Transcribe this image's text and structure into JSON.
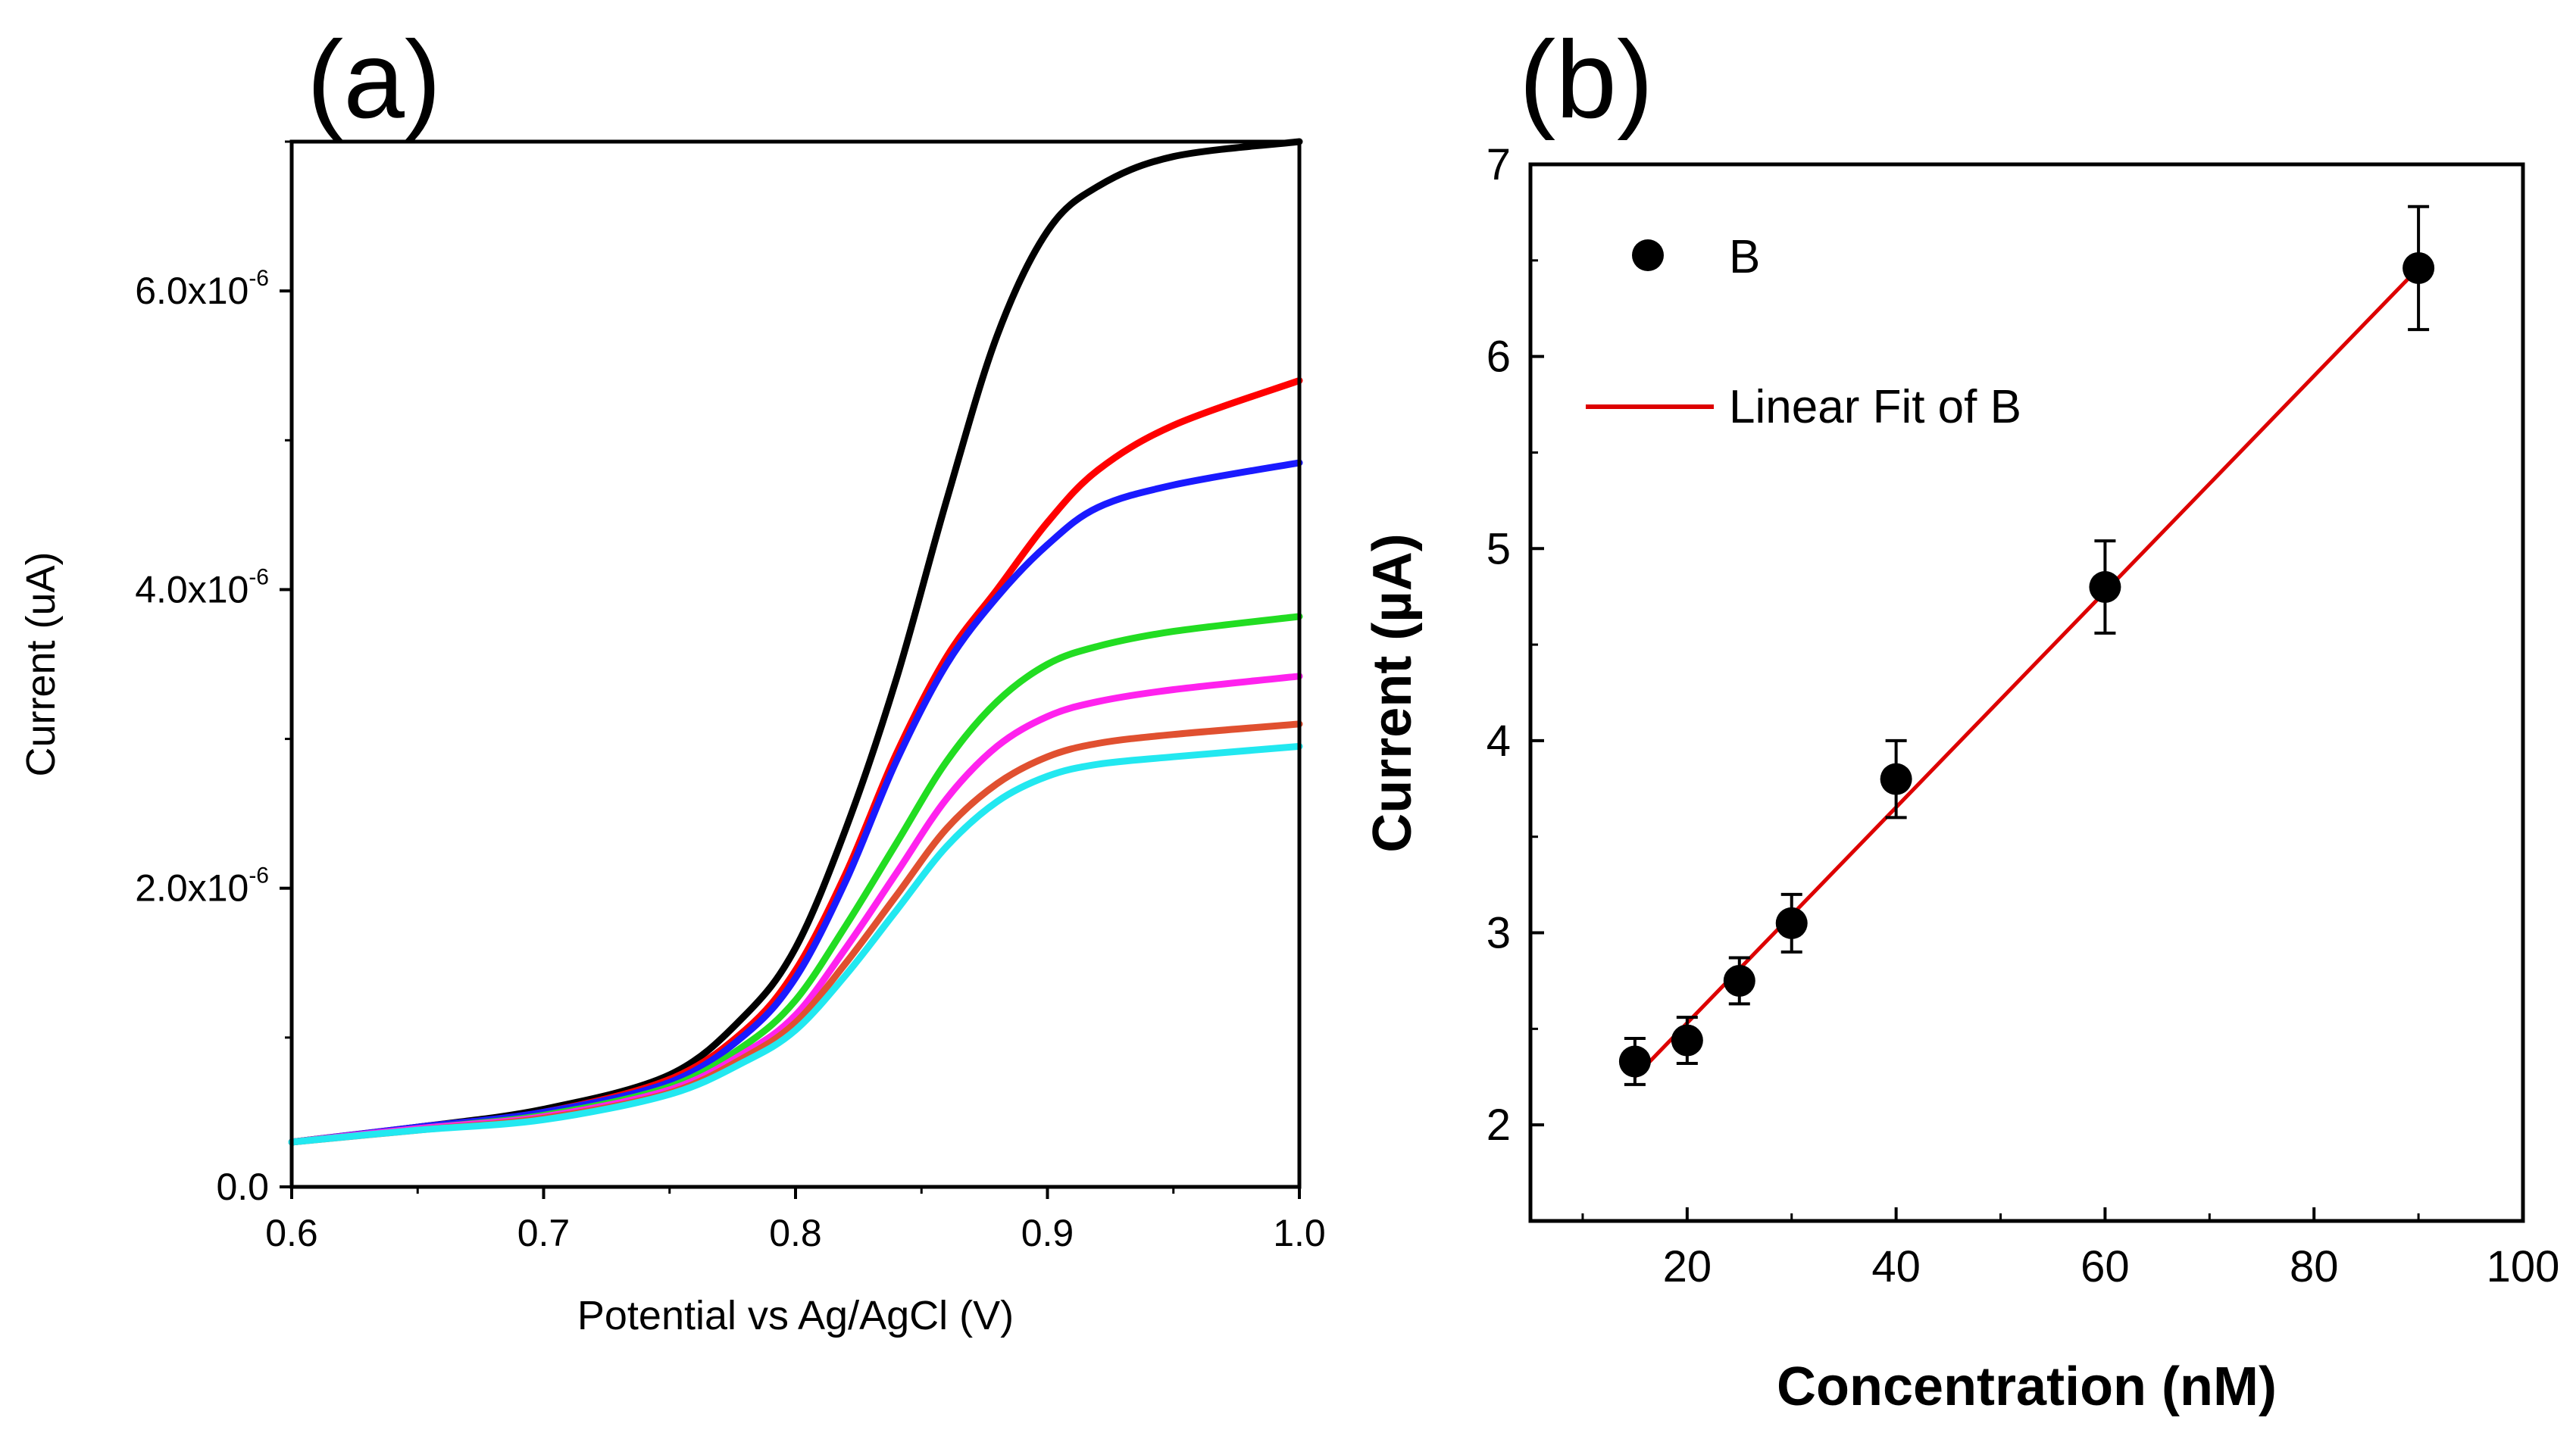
{
  "chart_data": [
    {
      "panel_label": "(a)",
      "type": "line",
      "xlabel": "Potential vs Ag/AgCl (V)",
      "ylabel": "Current (uA)",
      "xlim": [
        0.6,
        1.0
      ],
      "ylim": [
        0.0,
        7e-06
      ],
      "x_ticks": [
        0.6,
        0.7,
        0.8,
        0.9,
        1.0
      ],
      "x_tick_labels": [
        "0.6",
        "0.7",
        "0.8",
        "0.9",
        "1.0"
      ],
      "y_ticks": [
        0.0,
        2e-06,
        4e-06,
        6e-06
      ],
      "y_tick_labels": [
        {
          "base": "0.0",
          "exp": ""
        },
        {
          "base": "2.0x10",
          "exp": "-6"
        },
        {
          "base": "4.0x10",
          "exp": "-6"
        },
        {
          "base": "6.0x10",
          "exp": "-6"
        }
      ],
      "x": [
        0.6,
        0.65,
        0.7,
        0.75,
        0.78,
        0.8,
        0.82,
        0.84,
        0.86,
        0.88,
        0.9,
        0.92,
        0.95,
        1.0
      ],
      "series": [
        {
          "name": "black",
          "color": "#000000",
          "values": [
            3e-07,
            4e-07,
            5.2e-07,
            7.5e-07,
            1.15e-06,
            1.6e-06,
            2.4e-06,
            3.4e-06,
            4.6e-06,
            5.7e-06,
            6.4e-06,
            6.7e-06,
            6.9e-06,
            7e-06
          ]
        },
        {
          "name": "red",
          "color": "#ff0000",
          "values": [
            3e-07,
            4e-07,
            5e-07,
            7.2e-07,
            1.05e-06,
            1.45e-06,
            2.1e-06,
            2.9e-06,
            3.55e-06,
            4e-06,
            4.45e-06,
            4.8e-06,
            5.1e-06,
            5.4e-06
          ]
        },
        {
          "name": "blue",
          "color": "#1a1aff",
          "values": [
            3e-07,
            4e-07,
            5e-07,
            7e-07,
            1.02e-06,
            1.4e-06,
            2.05e-06,
            2.85e-06,
            3.5e-06,
            3.95e-06,
            4.3e-06,
            4.55e-06,
            4.7e-06,
            4.85e-06
          ]
        },
        {
          "name": "green",
          "color": "#22dd22",
          "values": [
            3e-07,
            3.9e-07,
            4.8e-07,
            6.7e-07,
            9.5e-07,
            1.25e-06,
            1.75e-06,
            2.3e-06,
            2.85e-06,
            3.25e-06,
            3.5e-06,
            3.62e-06,
            3.72e-06,
            3.82e-06
          ]
        },
        {
          "name": "magenta",
          "color": "#ff22ee",
          "values": [
            3e-07,
            3.9e-07,
            4.7e-07,
            6.5e-07,
            9e-07,
            1.15e-06,
            1.6e-06,
            2.1e-06,
            2.6e-06,
            2.95e-06,
            3.15e-06,
            3.25e-06,
            3.33e-06,
            3.42e-06
          ]
        },
        {
          "name": "orange",
          "color": "#e05030",
          "values": [
            3e-07,
            3.8e-07,
            4.6e-07,
            6.3e-07,
            8.7e-07,
            1.1e-06,
            1.5e-06,
            1.95e-06,
            2.4e-06,
            2.7e-06,
            2.88e-06,
            2.97e-06,
            3.03e-06,
            3.1e-06
          ]
        },
        {
          "name": "cyan",
          "color": "#22e8f0",
          "values": [
            3e-07,
            3.8e-07,
            4.5e-07,
            6.2e-07,
            8.4e-07,
            1.05e-06,
            1.42e-06,
            1.85e-06,
            2.28e-06,
            2.58e-06,
            2.75e-06,
            2.83e-06,
            2.88e-06,
            2.95e-06
          ]
        }
      ]
    },
    {
      "panel_label": "(b)",
      "type": "scatter",
      "xlabel": "Concentration (nM)",
      "ylabel": "Current (µA)",
      "xlim": [
        5,
        100
      ],
      "ylim": [
        1.5,
        7
      ],
      "x_ticks": [
        20,
        40,
        60,
        80,
        100
      ],
      "x_tick_labels": [
        "20",
        "40",
        "60",
        "80",
        "100"
      ],
      "x_minor_ticks": [
        10,
        30,
        50,
        70,
        90
      ],
      "y_ticks": [
        2,
        3,
        4,
        5,
        6,
        7
      ],
      "y_tick_labels": [
        "2",
        "3",
        "4",
        "5",
        "6",
        "7"
      ],
      "y_minor_ticks": [
        2.5,
        3.5,
        4.5,
        5.5,
        6.5
      ],
      "series": [
        {
          "name": "B",
          "color": "#000000",
          "x": [
            15,
            20,
            25,
            30,
            40,
            60,
            90
          ],
          "y": [
            2.33,
            2.44,
            2.75,
            3.05,
            3.8,
            4.8,
            6.46
          ],
          "yerr": [
            0.12,
            0.12,
            0.12,
            0.15,
            0.2,
            0.24,
            0.32
          ]
        }
      ],
      "fit": {
        "name": "Linear Fit of B",
        "color": "#dd0000",
        "x": [
          15,
          90
        ],
        "y": [
          2.25,
          6.46
        ]
      },
      "legend": {
        "position": "top-left",
        "entries": [
          "B",
          "Linear Fit of B"
        ]
      }
    }
  ]
}
